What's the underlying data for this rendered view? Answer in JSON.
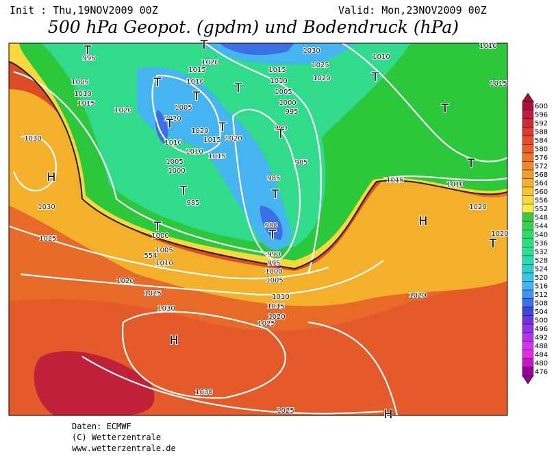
{
  "header": {
    "init": "Init : Thu,19NOV2009 00Z",
    "valid": "Valid: Mon,23NOV2009 00Z",
    "title": "500 hPa Geopot. (gpdm) und Bodendruck (hPa)"
  },
  "map": {
    "isobar_labels": [
      995,
      1005,
      1010,
      1015,
      1020,
      1020,
      1015,
      1010,
      1005,
      1020,
      1010,
      1010,
      1020,
      1015,
      1020,
      1015,
      1005,
      1000,
      985,
      1000,
      1005,
      1010,
      1020,
      1025,
      1030,
      1030,
      1030,
      1025,
      1030,
      1025,
      1020,
      1015,
      1010,
      1005,
      1000,
      995,
      990,
      985,
      985,
      980,
      990,
      995,
      1000,
      1005,
      1010,
      1015,
      1020,
      1025,
      1010,
      1015,
      1010,
      1020,
      1020,
      1020,
      1030,
      1025,
      1010,
      1015,
      554
    ],
    "pressure_centers": [
      "T",
      "T",
      "T",
      "T",
      "T",
      "T",
      "T",
      "T",
      "T",
      "T",
      "T",
      "T",
      "T",
      "T",
      "T",
      "T",
      "H",
      "H",
      "H",
      "H"
    ]
  },
  "colorbar": {
    "levels": [
      600,
      596,
      592,
      588,
      584,
      580,
      576,
      572,
      568,
      564,
      560,
      556,
      552,
      548,
      544,
      540,
      536,
      532,
      528,
      524,
      520,
      516,
      512,
      508,
      504,
      500,
      496,
      492,
      488,
      484,
      480,
      476
    ],
    "colors": [
      "#a8103c",
      "#c01c3c",
      "#d0283a",
      "#dc3a30",
      "#e44c2c",
      "#e86028",
      "#ec7428",
      "#f08828",
      "#f49c28",
      "#f6b02a",
      "#f8c432",
      "#f8d83c",
      "#f4ec4a",
      "#3cc83c",
      "#34d250",
      "#2cdc64",
      "#28e07c",
      "#28e096",
      "#28dcb0",
      "#28d2c8",
      "#32c8e6",
      "#46b4f0",
      "#3c96f0",
      "#3c6ee6",
      "#3c46dc",
      "#6e32e6",
      "#9632e6",
      "#b432f0",
      "#d232f0",
      "#e628e6",
      "#c814c8",
      "#960096"
    ]
  },
  "footer": {
    "source": "Daten: ECMWF",
    "copyright": "(C) Wetterzentrale",
    "url": "www.wetterzentrale.de"
  }
}
